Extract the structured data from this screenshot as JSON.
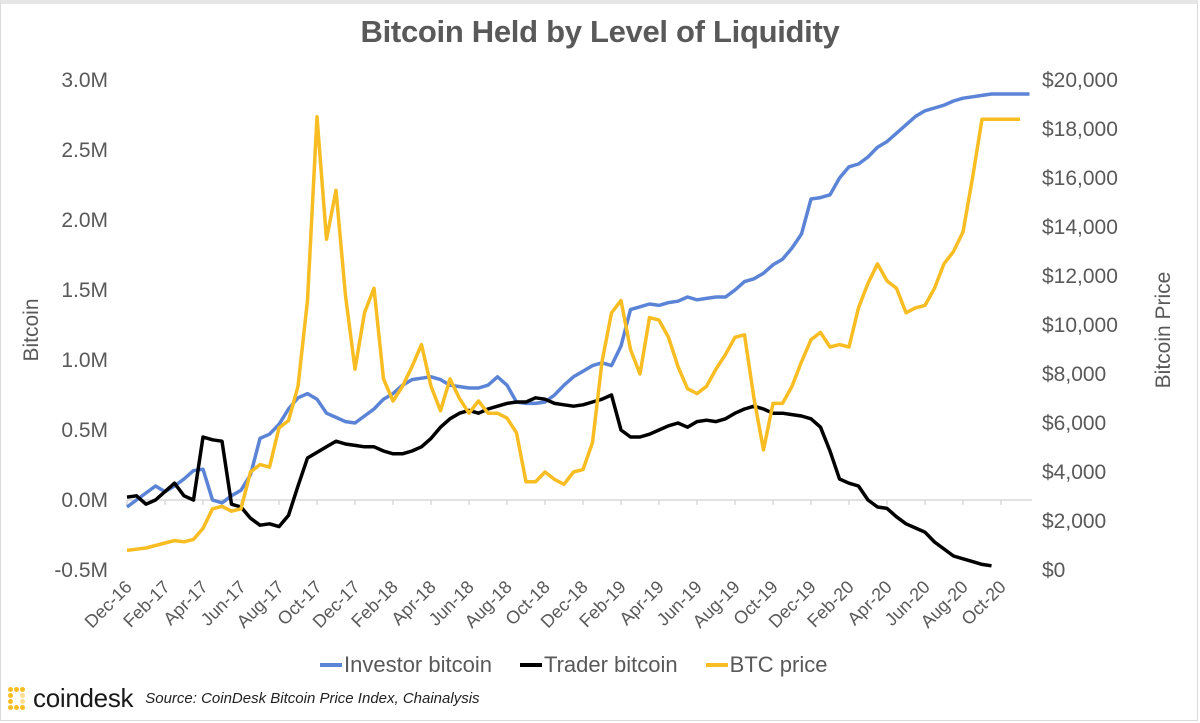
{
  "chart_data": {
    "type": "line",
    "title": "Bitcoin Held by Level of Liquidity",
    "xlabel": "",
    "ylabel": "Bitcoin",
    "y2label": "Bitcoin Price",
    "ylim": [
      -500000,
      3000000
    ],
    "y2lim": [
      0,
      20000
    ],
    "yticks": [
      "-0.5M",
      "0.0M",
      "0.5M",
      "1.0M",
      "1.5M",
      "2.0M",
      "2.5M",
      "3.0M"
    ],
    "y2ticks": [
      "$0",
      "$2,000",
      "$4,000",
      "$6,000",
      "$8,000",
      "$10,000",
      "$12,000",
      "$14,000",
      "$16,000",
      "$18,000",
      "$20,000"
    ],
    "xticks": [
      "Dec-16",
      "Feb-17",
      "Apr-17",
      "Jun-17",
      "Aug-17",
      "Oct-17",
      "Dec-17",
      "Feb-18",
      "Apr-18",
      "Jun-18",
      "Aug-18",
      "Oct-18",
      "Dec-18",
      "Feb-19",
      "Apr-19",
      "Jun-19",
      "Aug-19",
      "Oct-19",
      "Dec-19",
      "Feb-20",
      "Apr-20",
      "Jun-20",
      "Aug-20",
      "Oct-20"
    ],
    "x_unit": "months since Dec-16",
    "grid": false,
    "legend_position": "bottom",
    "series": [
      {
        "name": "Investor bitcoin",
        "axis": "left",
        "color": "#5b84d6",
        "x": [
          0,
          0.5,
          1,
          1.5,
          2,
          2.5,
          3,
          3.5,
          4,
          4.5,
          5,
          5.5,
          6,
          6.5,
          7,
          7.5,
          8,
          8.5,
          9,
          9.5,
          10,
          10.5,
          11,
          11.5,
          12,
          12.5,
          13,
          13.5,
          14,
          14.5,
          15,
          15.5,
          16,
          16.5,
          17,
          17.5,
          18,
          18.5,
          19,
          19.5,
          20,
          20.5,
          21,
          21.5,
          22,
          22.5,
          23,
          23.5,
          24,
          24.5,
          25,
          25.5,
          26,
          26.5,
          27,
          27.5,
          28,
          28.5,
          29,
          29.5,
          30,
          30.5,
          31,
          31.5,
          32,
          32.5,
          33,
          33.5,
          34,
          34.5,
          35,
          35.5,
          36,
          36.5,
          37,
          37.5,
          38,
          38.5,
          39,
          39.5,
          40,
          40.5,
          41,
          41.5,
          42,
          42.5,
          43,
          43.5,
          44,
          44.5,
          45,
          45.5,
          46,
          46.5,
          47,
          47.5
        ],
        "values": [
          -50000,
          0,
          50000,
          100000,
          60000,
          100000,
          150000,
          210000,
          220000,
          0,
          -20000,
          30000,
          70000,
          180000,
          440000,
          470000,
          540000,
          650000,
          730000,
          760000,
          720000,
          620000,
          590000,
          560000,
          550000,
          600000,
          650000,
          720000,
          760000,
          820000,
          860000,
          870000,
          880000,
          860000,
          820000,
          810000,
          800000,
          800000,
          820000,
          880000,
          820000,
          700000,
          690000,
          690000,
          700000,
          750000,
          820000,
          880000,
          920000,
          960000,
          980000,
          960000,
          1100000,
          1360000,
          1380000,
          1400000,
          1390000,
          1410000,
          1420000,
          1450000,
          1430000,
          1440000,
          1450000,
          1450000,
          1500000,
          1560000,
          1580000,
          1620000,
          1680000,
          1720000,
          1800000,
          1900000,
          2150000,
          2160000,
          2180000,
          2300000,
          2380000,
          2400000,
          2450000,
          2520000,
          2560000,
          2620000,
          2680000,
          2740000,
          2780000,
          2800000,
          2820000,
          2850000,
          2870000,
          2880000,
          2890000,
          2900000,
          2900000,
          2900000,
          2900000,
          2900000
        ]
      },
      {
        "name": "Trader bitcoin",
        "axis": "left",
        "color": "#000000",
        "x": [
          0,
          0.5,
          1,
          1.5,
          2,
          2.5,
          3,
          3.5,
          4,
          4.5,
          5,
          5.5,
          6,
          6.5,
          7,
          7.5,
          8,
          8.5,
          9,
          9.5,
          10,
          10.5,
          11,
          11.5,
          12,
          12.5,
          13,
          13.5,
          14,
          14.5,
          15,
          15.5,
          16,
          16.5,
          17,
          17.5,
          18,
          18.5,
          19,
          19.5,
          20,
          20.5,
          21,
          21.5,
          22,
          22.5,
          23,
          23.5,
          24,
          24.5,
          25,
          25.5,
          26,
          26.5,
          27,
          27.5,
          28,
          28.5,
          29,
          29.5,
          30,
          30.5,
          31,
          31.5,
          32,
          32.5,
          33,
          33.5,
          34,
          34.5,
          35,
          35.5,
          36,
          36.5,
          37,
          37.5,
          38,
          38.5,
          39,
          39.5,
          40,
          40.5,
          41,
          41.5,
          42,
          42.5,
          43,
          43.5,
          44,
          44.5,
          45,
          45.5
        ],
        "values": [
          20000,
          30000,
          -30000,
          0,
          60000,
          120000,
          30000,
          0,
          450000,
          430000,
          420000,
          -30000,
          -50000,
          -130000,
          -180000,
          -170000,
          -190000,
          -110000,
          100000,
          300000,
          340000,
          380000,
          420000,
          400000,
          390000,
          380000,
          380000,
          350000,
          330000,
          330000,
          350000,
          380000,
          440000,
          520000,
          580000,
          620000,
          640000,
          620000,
          650000,
          670000,
          690000,
          700000,
          700000,
          730000,
          720000,
          690000,
          680000,
          670000,
          680000,
          700000,
          720000,
          750000,
          500000,
          450000,
          450000,
          470000,
          500000,
          530000,
          550000,
          520000,
          560000,
          570000,
          560000,
          580000,
          620000,
          650000,
          670000,
          650000,
          620000,
          620000,
          610000,
          600000,
          580000,
          520000,
          350000,
          150000,
          120000,
          100000,
          0,
          -50000,
          -60000,
          -120000,
          -170000,
          -200000,
          -230000,
          -300000,
          -350000,
          -400000,
          -420000,
          -440000,
          -460000,
          -470000
        ]
      },
      {
        "name": "BTC price",
        "axis": "right",
        "color": "#f8bd23",
        "x": [
          0,
          0.5,
          1,
          1.5,
          2,
          2.5,
          3,
          3.5,
          4,
          4.5,
          5,
          5.5,
          6,
          6.5,
          7,
          7.5,
          8,
          8.5,
          9,
          9.5,
          10,
          10.5,
          11,
          11.5,
          12,
          12.5,
          13,
          13.5,
          14,
          14.5,
          15,
          15.5,
          16,
          16.5,
          17,
          17.5,
          18,
          18.5,
          19,
          19.5,
          20,
          20.5,
          21,
          21.5,
          22,
          22.5,
          23,
          23.5,
          24,
          24.5,
          25,
          25.5,
          26,
          26.5,
          27,
          27.5,
          28,
          28.5,
          29,
          29.5,
          30,
          30.5,
          31,
          31.5,
          32,
          32.5,
          33,
          33.5,
          34,
          34.5,
          35,
          35.5,
          36,
          36.5,
          37,
          37.5,
          38,
          38.5,
          39,
          39.5,
          40,
          40.5,
          41,
          41.5,
          42,
          42.5,
          43,
          43.5,
          44,
          44.5,
          45,
          45.5,
          46,
          46.5,
          47
        ],
        "values": [
          800,
          850,
          900,
          1000,
          1100,
          1200,
          1150,
          1250,
          1700,
          2500,
          2600,
          2400,
          2500,
          4000,
          4300,
          4200,
          5800,
          6100,
          7500,
          11000,
          18500,
          13500,
          15500,
          11200,
          8200,
          10500,
          11500,
          7800,
          6900,
          7500,
          8300,
          9200,
          7500,
          6500,
          7800,
          7000,
          6400,
          6900,
          6400,
          6400,
          6200,
          5600,
          3600,
          3600,
          4000,
          3700,
          3500,
          4000,
          4100,
          5200,
          8500,
          10500,
          11000,
          9000,
          8000,
          10300,
          10200,
          9500,
          8300,
          7400,
          7200,
          7500,
          8200,
          8800,
          9500,
          9600,
          7000,
          4900,
          6800,
          6800,
          7500,
          8500,
          9400,
          9700,
          9100,
          9200,
          9100,
          10700,
          11700,
          12500,
          11800,
          11500,
          10500,
          10700,
          10800,
          11500,
          12500,
          13000,
          13800,
          16000,
          18400,
          18400,
          18400,
          18400,
          18400
        ]
      }
    ]
  },
  "legend": {
    "items": [
      {
        "label": "Investor bitcoin",
        "color": "#5b84d6"
      },
      {
        "label": "Trader bitcoin",
        "color": "#000000"
      },
      {
        "label": "BTC price",
        "color": "#f8bd23"
      }
    ]
  },
  "footer": {
    "brand": "coindesk",
    "source": "Source: CoinDesk Bitcoin Price Index, Chainalysis",
    "brand_color": "#f8bd23"
  }
}
